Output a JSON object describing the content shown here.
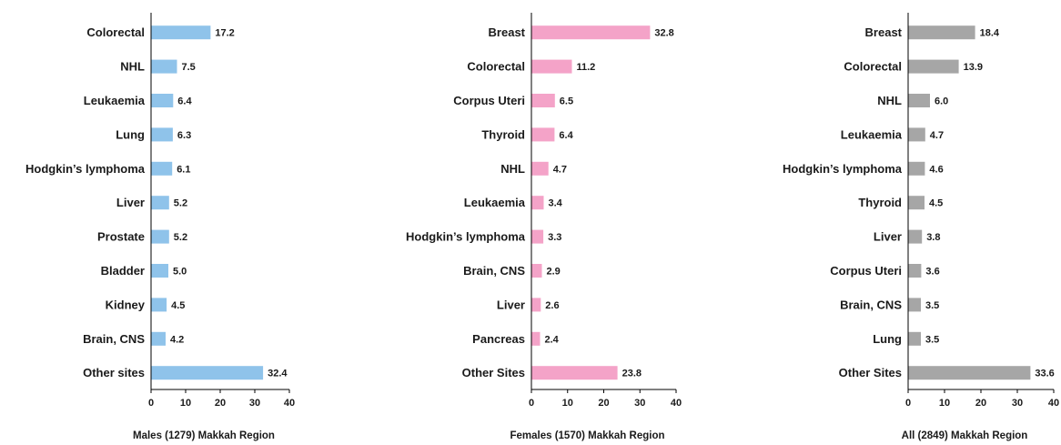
{
  "chart_data": [
    {
      "type": "bar",
      "orientation": "horizontal",
      "title": "Males (1279) Makkah Region",
      "color": "#8fc3ea",
      "categories": [
        "Colorectal",
        "NHL",
        "Leukaemia",
        "Lung",
        "Hodgkin’s lymphoma",
        "Liver",
        "Prostate",
        "Bladder",
        "Kidney",
        "Brain, CNS",
        "Other sites"
      ],
      "values": [
        17.2,
        7.5,
        6.4,
        6.3,
        6.1,
        5.2,
        5.2,
        5.0,
        4.5,
        4.2,
        32.4
      ],
      "value_labels": [
        "17.2",
        "7.5",
        "6.4",
        "6.3",
        "6.1",
        "5.2",
        "5.2",
        "5.0",
        "4.5",
        "4.2",
        "32.4"
      ],
      "xlim": [
        0,
        40
      ],
      "xticks": [
        "0",
        "10",
        "20",
        "30",
        "40"
      ],
      "grid": false
    },
    {
      "type": "bar",
      "orientation": "horizontal",
      "title": "Females  (1570) Makkah Region",
      "color": "#f4a3c8",
      "categories": [
        "Breast",
        "Colorectal",
        "Corpus Uteri",
        "Thyroid",
        "NHL",
        "Leukaemia",
        "Hodgkin’s lymphoma",
        "Brain, CNS",
        "Liver",
        "Pancreas",
        "Other Sites"
      ],
      "values": [
        32.8,
        11.2,
        6.5,
        6.4,
        4.7,
        3.4,
        3.3,
        2.9,
        2.6,
        2.4,
        23.8
      ],
      "value_labels": [
        "32.8",
        "11.2",
        "6.5",
        "6.4",
        "4.7",
        "3.4",
        "3.3",
        "2.9",
        "2.6",
        "2.4",
        "23.8"
      ],
      "xlim": [
        0,
        40
      ],
      "xticks": [
        "0",
        "10",
        "20",
        "30",
        "40"
      ],
      "grid": false
    },
    {
      "type": "bar",
      "orientation": "horizontal",
      "title": "All (2849) Makkah Region",
      "color": "#a6a6a6",
      "categories": [
        "Breast",
        "Colorectal",
        "NHL",
        "Leukaemia",
        "Hodgkin’s lymphoma",
        "Thyroid",
        "Liver",
        "Corpus Uteri",
        "Brain, CNS",
        "Lung",
        "Other Sites"
      ],
      "values": [
        18.4,
        13.9,
        6.0,
        4.7,
        4.6,
        4.5,
        3.8,
        3.6,
        3.5,
        3.5,
        33.6
      ],
      "value_labels": [
        "18.4",
        "13.9",
        "6.0",
        "4.7",
        "4.6",
        "4.5",
        "3.8",
        "3.6",
        "3.5",
        "3.5",
        "33.6"
      ],
      "xlim": [
        0,
        40
      ],
      "xticks": [
        "0",
        "10",
        "20",
        "30",
        "40"
      ],
      "grid": false
    }
  ]
}
